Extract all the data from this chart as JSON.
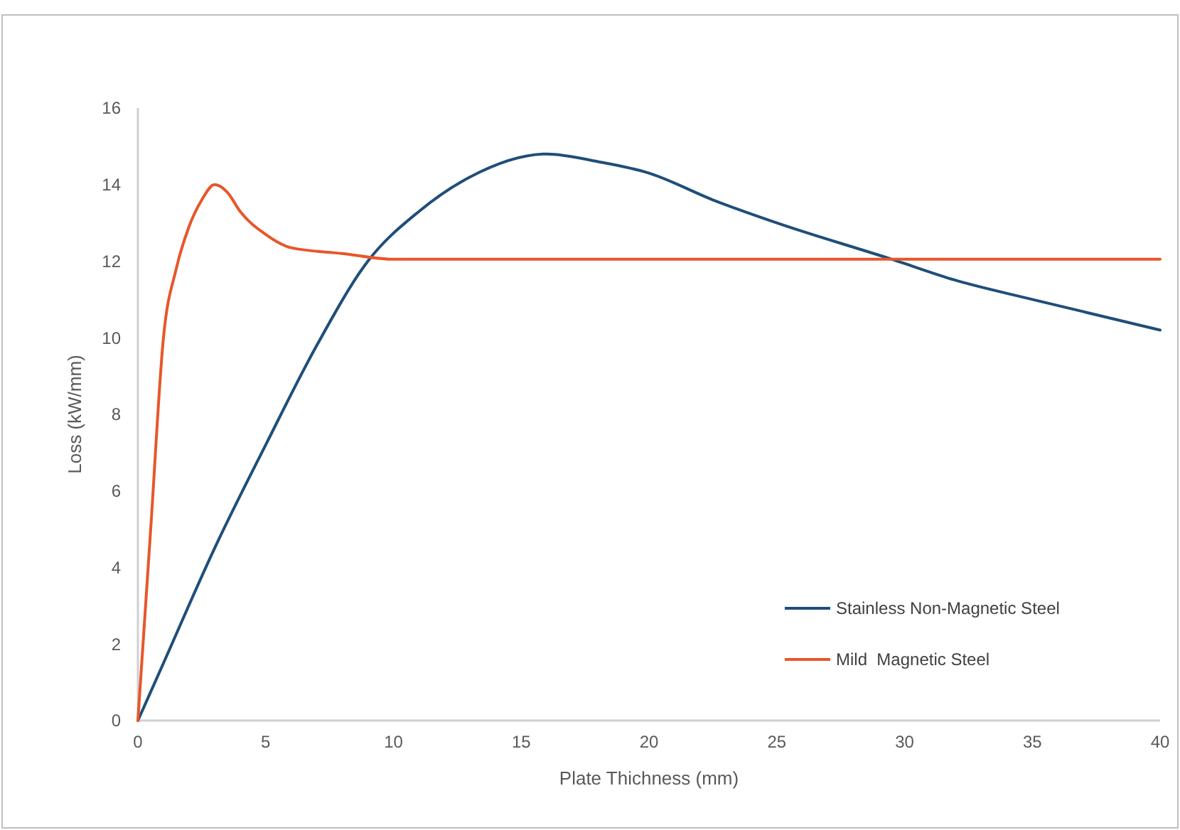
{
  "chart_data": {
    "type": "line",
    "xlabel": "Plate Thichness (mm)",
    "ylabel": "Loss (kW/mm)",
    "xlim": [
      0,
      40
    ],
    "xticks": [
      0,
      5,
      10,
      15,
      20,
      25,
      30,
      35,
      40
    ],
    "ylim": [
      0,
      16
    ],
    "yticks": [
      0,
      2,
      4,
      6,
      8,
      10,
      12,
      14,
      16
    ],
    "grid": false,
    "legend": "bottom right",
    "marker": "none",
    "line_style": "solid",
    "series": [
      {
        "name": "Stainless Non-Magnetic Steel",
        "color": "#1f4e79",
        "x": [
          0,
          1,
          3,
          5,
          7,
          9,
          11,
          13,
          16,
          18,
          20,
          22.5,
          25,
          29.5,
          32,
          35,
          40
        ],
        "values": [
          0,
          1.5,
          4.5,
          7.2,
          9.8,
          12,
          13.3,
          14.2,
          14.8,
          14.6,
          14.3,
          13.6,
          13,
          12.05,
          11.5,
          11,
          10.2
        ]
      },
      {
        "name": "Mild  Magnetic Steel",
        "color": "#e8562a",
        "x": [
          0,
          0.5,
          1,
          1.5,
          2,
          2.5,
          3,
          3.5,
          4,
          5,
          6,
          8,
          10,
          15,
          20,
          30,
          40
        ],
        "values": [
          0,
          5,
          10,
          11.8,
          12.9,
          13.6,
          14,
          13.8,
          13.3,
          12.7,
          12.35,
          12.2,
          12.05,
          12.05,
          12.05,
          12.05,
          12.05
        ]
      }
    ]
  }
}
